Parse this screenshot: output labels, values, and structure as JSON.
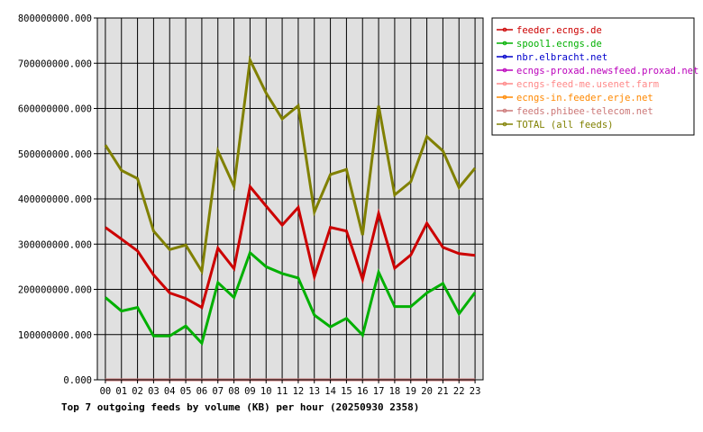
{
  "chart_data": {
    "type": "line",
    "title": "Top 7 outgoing feeds by volume (KB) per hour (20250930 2358)",
    "xlabel": "",
    "ylabel": "",
    "ylim": [
      0,
      800000000
    ],
    "yticks": [
      "0.000",
      "100000000.000",
      "200000000.000",
      "300000000.000",
      "400000000.000",
      "500000000.000",
      "600000000.000",
      "700000000.000",
      "800000000.000"
    ],
    "categories": [
      "00",
      "01",
      "02",
      "03",
      "04",
      "05",
      "06",
      "07",
      "08",
      "09",
      "10",
      "11",
      "12",
      "13",
      "14",
      "15",
      "16",
      "17",
      "18",
      "19",
      "20",
      "21",
      "22",
      "23"
    ],
    "grid": true,
    "legend_position": "right",
    "background": "#e0e0e0",
    "series": [
      {
        "name": "feeder.ecngs.de",
        "color": "#cc0000",
        "values": [
          337000000,
          311000000,
          285000000,
          232000000,
          192000000,
          180000000,
          160000000,
          291000000,
          246000000,
          427000000,
          384000000,
          342000000,
          381000000,
          228000000,
          337000000,
          329000000,
          222000000,
          368000000,
          247000000,
          276000000,
          346000000,
          293000000,
          279000000,
          275000000
        ]
      },
      {
        "name": "spool1.ecngs.de",
        "color": "#00b000",
        "values": [
          182000000,
          152000000,
          160000000,
          97000000,
          97000000,
          119000000,
          81000000,
          215000000,
          182000000,
          281000000,
          250000000,
          235000000,
          225000000,
          143000000,
          117000000,
          136000000,
          99000000,
          238000000,
          162000000,
          162000000,
          192000000,
          213000000,
          146000000,
          193000000
        ]
      },
      {
        "name": "nbr.elbracht.net",
        "color": "#0000cc",
        "values": [
          0,
          0,
          0,
          0,
          0,
          0,
          0,
          0,
          0,
          0,
          0,
          0,
          0,
          0,
          0,
          0,
          0,
          0,
          0,
          0,
          0,
          0,
          0,
          0
        ]
      },
      {
        "name": "ecngs-proxad.newsfeed.proxad.net",
        "color": "#bb00bb",
        "values": [
          0,
          0,
          0,
          0,
          0,
          0,
          0,
          0,
          0,
          0,
          0,
          0,
          0,
          0,
          0,
          0,
          0,
          0,
          0,
          0,
          0,
          0,
          0,
          0
        ]
      },
      {
        "name": "ecngs-feed-me.usenet.farm",
        "color": "#ff8888",
        "values": [
          0,
          0,
          0,
          0,
          0,
          0,
          0,
          0,
          0,
          0,
          0,
          0,
          0,
          0,
          0,
          0,
          0,
          0,
          0,
          0,
          0,
          0,
          0,
          0
        ]
      },
      {
        "name": "ecngs-in.feeder.erje.net",
        "color": "#ff8800",
        "values": [
          0,
          0,
          0,
          0,
          0,
          0,
          0,
          0,
          0,
          0,
          0,
          0,
          0,
          0,
          0,
          0,
          0,
          0,
          0,
          0,
          0,
          0,
          0,
          0
        ]
      },
      {
        "name": "feeds.phibee-telecom.net",
        "color": "#cc7777",
        "values": [
          0,
          0,
          0,
          0,
          0,
          0,
          0,
          0,
          0,
          0,
          0,
          0,
          0,
          0,
          0,
          0,
          0,
          0,
          0,
          0,
          0,
          0,
          0,
          0
        ]
      },
      {
        "name": "TOTAL (all feeds)",
        "color": "#808000",
        "values": [
          519000000,
          463000000,
          445000000,
          329000000,
          288000000,
          298000000,
          240000000,
          506000000,
          428000000,
          707000000,
          634000000,
          577000000,
          606000000,
          371000000,
          454000000,
          465000000,
          320000000,
          606000000,
          409000000,
          438000000,
          538000000,
          506000000,
          425000000,
          468000000
        ]
      }
    ]
  }
}
